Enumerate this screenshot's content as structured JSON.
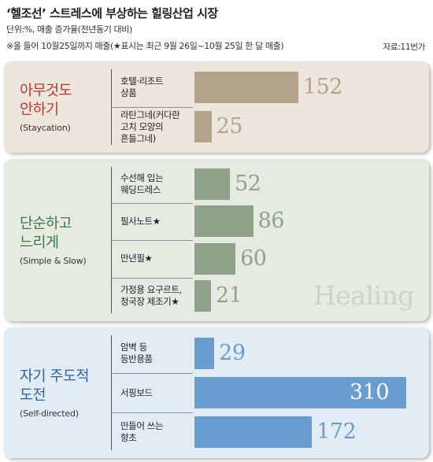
{
  "header": {
    "title": "‘헬조선’ 스트레스에 부상하는 힐링산업 시장",
    "unit": "단위:%, 매출 증가율(전년동기 대비)",
    "note": "※올 들어 10월25일까지 매출(★표시는 최근 9월 26일~10월 25일 한 달 매출)",
    "source": "자료:11번가"
  },
  "watermark": "Healing",
  "colors": {
    "staycation_bar": "#b3a58c",
    "staycation_bg": "#ece6dc",
    "staycation_title": "#c2382b",
    "slow_bar": "#8fa38a",
    "slow_bg": "#e5ebe1",
    "slow_title": "#3f7a43",
    "self_bar": "#6a9dcf",
    "self_bg": "#e2ecf5",
    "self_title": "#2e62a8"
  },
  "chart_data": {
    "type": "bar",
    "orientation": "horizontal",
    "title": "‘헬조선’ 스트레스에 부상하는 힐링산업 시장",
    "unit": "단위:%, 매출 증가율(전년동기 대비)",
    "groups": [
      {
        "title": "아무것도\n안하기",
        "subtitle": "(Staycation)",
        "categories": [
          "호텔·리조트\n상품",
          "라탄그네(커다란\n고치 모양의\n흔들그네)"
        ],
        "values": [
          152,
          25
        ]
      },
      {
        "title": "단순하고\n느리게",
        "subtitle": "(Simple & Slow)",
        "categories": [
          "수선해 입는\n웨딩드레스",
          "필사노트★",
          "만년필★",
          "가정용 요구르트,\n청국장 제조기★"
        ],
        "values": [
          52,
          86,
          60,
          21
        ]
      },
      {
        "title": "자기 주도적\n도전",
        "subtitle": "(Self-directed)",
        "categories": [
          "암벽 등\n등반용품",
          "서핑보드",
          "만들어 쓰는\n향초"
        ],
        "values": [
          29,
          310,
          172
        ]
      }
    ]
  }
}
